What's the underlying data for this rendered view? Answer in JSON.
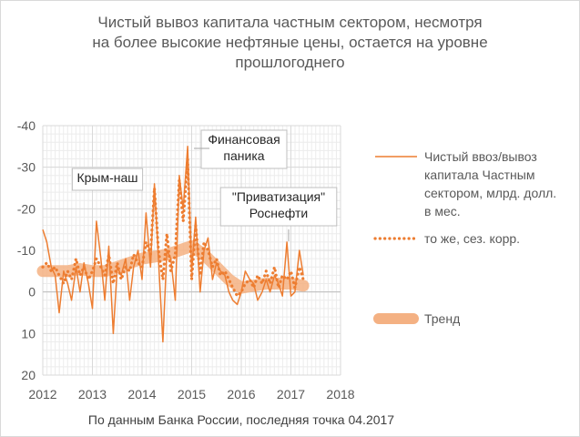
{
  "title_lines": [
    "Чистый вывоз капитала частным сектором, несмотря",
    "на более высокие нефтяные цены, остается на уровне",
    "прошлогоднего"
  ],
  "note": "По данным Банка России, последняя точка 04.2017",
  "colors": {
    "line": "#ed7d31",
    "trend": "#f4b183",
    "grid": "#d9d9d9",
    "text": "#595959"
  },
  "chart_data": {
    "type": "line",
    "title": "Чистый вывоз капитала частным сектором, несмотря на более высокие нефтяные цены, остается на уровне прошлогоднего",
    "xlabel": "",
    "ylabel": "",
    "xlim": [
      2012,
      2018
    ],
    "ylim": [
      -40,
      20
    ],
    "y_inverted": true,
    "x_ticks": [
      "2012",
      "2013",
      "2014",
      "2015",
      "2016",
      "2017",
      "2018"
    ],
    "y_ticks": [
      "-40",
      "-30",
      "-20",
      "-10",
      "0",
      "10",
      "20"
    ],
    "grid": true,
    "legend_position": "right",
    "annotations": [
      {
        "text": "Крым-наш",
        "x": 2014.33,
        "y": -27
      },
      {
        "text": "Финансовая\nпаника",
        "x": 2014.92,
        "y": -34
      },
      {
        "text": "\"Приватизация\"\nРоснефти",
        "x": 2016.92,
        "y": -12
      }
    ],
    "series": [
      {
        "name": "Чистый ввоз/вывоз капитала Частным сектором, млрд. долл. в мес.",
        "style": "line",
        "x": [
          2012.0,
          2012.08,
          2012.17,
          2012.25,
          2012.33,
          2012.42,
          2012.5,
          2012.58,
          2012.67,
          2012.75,
          2012.83,
          2012.92,
          2013.0,
          2013.08,
          2013.17,
          2013.25,
          2013.33,
          2013.42,
          2013.5,
          2013.58,
          2013.67,
          2013.75,
          2013.83,
          2013.92,
          2014.0,
          2014.08,
          2014.17,
          2014.25,
          2014.33,
          2014.42,
          2014.5,
          2014.58,
          2014.67,
          2014.75,
          2014.83,
          2014.92,
          2015.0,
          2015.08,
          2015.17,
          2015.25,
          2015.33,
          2015.42,
          2015.5,
          2015.58,
          2015.67,
          2015.75,
          2015.83,
          2015.92,
          2016.0,
          2016.08,
          2016.17,
          2016.25,
          2016.33,
          2016.42,
          2016.5,
          2016.58,
          2016.67,
          2016.75,
          2016.83,
          2016.92,
          2017.0,
          2017.08,
          2017.17,
          2017.25
        ],
        "y": [
          -15,
          -12,
          -6,
          -4,
          5,
          -5,
          -2,
          2,
          -6,
          0,
          -7,
          -2,
          4,
          -17,
          -8,
          2,
          -11,
          10,
          -6,
          -4,
          -8,
          2,
          -6,
          -10,
          -3,
          -19,
          -6,
          -26,
          -8,
          12,
          -10,
          -8,
          2,
          -28,
          -20,
          -35,
          -5,
          -18,
          0,
          -10,
          -13,
          -3,
          -7,
          -5,
          -4,
          0,
          2,
          3,
          0,
          -5,
          -3,
          -2,
          2,
          0,
          -3,
          0,
          -4,
          -2,
          1,
          -12,
          1,
          0,
          -10,
          -4
        ]
      },
      {
        "name": "то же, сез. корр.",
        "style": "dotted",
        "x": [
          2012.0,
          2012.08,
          2012.17,
          2012.25,
          2012.33,
          2012.42,
          2012.5,
          2012.58,
          2012.67,
          2012.75,
          2012.83,
          2012.92,
          2013.0,
          2013.08,
          2013.17,
          2013.25,
          2013.33,
          2013.42,
          2013.5,
          2013.58,
          2013.67,
          2013.75,
          2013.83,
          2013.92,
          2014.0,
          2014.08,
          2014.17,
          2014.25,
          2014.33,
          2014.42,
          2014.5,
          2014.58,
          2014.67,
          2014.75,
          2014.83,
          2014.92,
          2015.0,
          2015.08,
          2015.17,
          2015.25,
          2015.33,
          2015.42,
          2015.5,
          2015.58,
          2015.67,
          2015.75,
          2015.83,
          2015.92,
          2016.0,
          2016.08,
          2016.17,
          2016.25,
          2016.33,
          2016.42,
          2016.5,
          2016.58,
          2016.67,
          2016.75,
          2016.83,
          2016.92,
          2017.0,
          2017.08,
          2017.17,
          2017.25
        ],
        "y": [
          -6,
          -7,
          -5,
          -6,
          -4,
          -2,
          -5,
          -3,
          -8,
          -4,
          -6,
          -3,
          -5,
          -8,
          -6,
          -4,
          -9,
          -2,
          -7,
          -3,
          -6,
          -5,
          -9,
          -7,
          -6,
          -12,
          -9,
          -25,
          -10,
          -3,
          -14,
          -5,
          -9,
          -27,
          -17,
          -32,
          -3,
          -16,
          -4,
          -12,
          -10,
          -6,
          -8,
          -4,
          -5,
          -3,
          -1,
          1,
          0,
          -2,
          -3,
          -1,
          -4,
          -2,
          -5,
          -2,
          -6,
          -1,
          -4,
          -3,
          -5,
          -1,
          -6,
          -3
        ]
      },
      {
        "name": "Тренд",
        "style": "thick",
        "x": [
          2012.0,
          2012.25,
          2012.5,
          2012.75,
          2013.0,
          2013.25,
          2013.5,
          2013.75,
          2014.0,
          2014.25,
          2014.5,
          2014.75,
          2015.0,
          2015.25,
          2015.5,
          2015.75,
          2016.0,
          2016.25,
          2016.5,
          2016.75,
          2017.0,
          2017.25
        ],
        "y": [
          -5,
          -5,
          -5,
          -5.5,
          -5,
          -5,
          -6,
          -7,
          -8,
          -8.5,
          -9,
          -10,
          -11,
          -9,
          -6,
          -3,
          -1,
          -1.5,
          -2,
          -2,
          -2,
          -1.5
        ]
      }
    ]
  },
  "legend": [
    {
      "label_lines": [
        "Чистый ввоз/вывоз",
        "капитала Частным",
        "сектором, млрд. долл.",
        "в мес."
      ],
      "style": "line"
    },
    {
      "label_lines": [
        "то же, сез. корр."
      ],
      "style": "dotted"
    },
    {
      "label_lines": [
        "Тренд"
      ],
      "style": "thick"
    }
  ]
}
